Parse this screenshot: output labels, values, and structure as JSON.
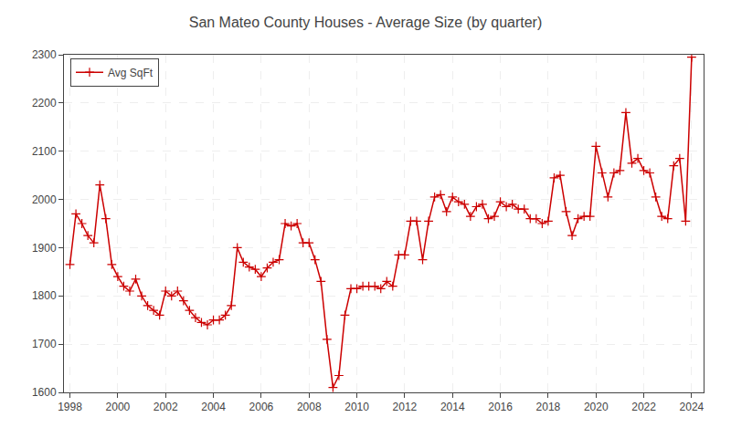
{
  "chart_data": {
    "type": "line",
    "title": "San Mateo County Houses - Average Size (by quarter)",
    "x": [
      1998.0,
      1998.25,
      1998.5,
      1998.75,
      1999.0,
      1999.25,
      1999.5,
      1999.75,
      2000.0,
      2000.25,
      2000.5,
      2000.75,
      2001.0,
      2001.25,
      2001.5,
      2001.75,
      2002.0,
      2002.25,
      2002.5,
      2002.75,
      2003.0,
      2003.25,
      2003.5,
      2003.75,
      2004.0,
      2004.25,
      2004.5,
      2004.75,
      2005.0,
      2005.25,
      2005.5,
      2005.75,
      2006.0,
      2006.25,
      2006.5,
      2006.75,
      2007.0,
      2007.25,
      2007.5,
      2007.75,
      2008.0,
      2008.25,
      2008.5,
      2008.75,
      2009.0,
      2009.25,
      2009.5,
      2009.75,
      2010.0,
      2010.25,
      2010.5,
      2010.75,
      2011.0,
      2011.25,
      2011.5,
      2011.75,
      2012.0,
      2012.25,
      2012.5,
      2012.75,
      2013.0,
      2013.25,
      2013.5,
      2013.75,
      2014.0,
      2014.25,
      2014.5,
      2014.75,
      2015.0,
      2015.25,
      2015.5,
      2015.75,
      2016.0,
      2016.25,
      2016.5,
      2016.75,
      2017.0,
      2017.25,
      2017.5,
      2017.75,
      2018.0,
      2018.25,
      2018.5,
      2018.75,
      2019.0,
      2019.25,
      2019.5,
      2019.75,
      2020.0,
      2020.25,
      2020.5,
      2020.75,
      2021.0,
      2021.25,
      2021.5,
      2021.75,
      2022.0,
      2022.25,
      2022.5,
      2022.75,
      2023.0,
      2023.25,
      2023.5,
      2023.75,
      2024.0
    ],
    "series": [
      {
        "name": "Avg SqFt",
        "color": "#cc0000",
        "marker": "plus",
        "line_style": "solid",
        "values": [
          1865,
          1970,
          1950,
          1925,
          1910,
          2030,
          1960,
          1865,
          1840,
          1820,
          1810,
          1835,
          1800,
          1780,
          1770,
          1760,
          1810,
          1800,
          1810,
          1790,
          1770,
          1755,
          1745,
          1740,
          1750,
          1750,
          1760,
          1780,
          1900,
          1870,
          1860,
          1855,
          1840,
          1858,
          1870,
          1875,
          1950,
          1945,
          1950,
          1910,
          1910,
          1875,
          1830,
          1710,
          1610,
          1635,
          1760,
          1815,
          1815,
          1820,
          1820,
          1820,
          1815,
          1830,
          1820,
          1885,
          1885,
          1955,
          1955,
          1875,
          1955,
          2005,
          2010,
          1975,
          2005,
          1995,
          1990,
          1965,
          1985,
          1990,
          1960,
          1965,
          1995,
          1985,
          1990,
          1980,
          1980,
          1960,
          1960,
          1950,
          1955,
          2045,
          2050,
          1975,
          1925,
          1960,
          1965,
          1965,
          2110,
          2055,
          2005,
          2055,
          2060,
          2180,
          2075,
          2085,
          2060,
          2055,
          2005,
          1965,
          1960,
          2070,
          2085,
          1955,
          2295
        ]
      }
    ],
    "xlim": [
      1997.75,
      2024.5
    ],
    "xticks": [
      1998,
      2000,
      2002,
      2004,
      2006,
      2008,
      2010,
      2012,
      2014,
      2016,
      2018,
      2020,
      2022,
      2024
    ],
    "ylim": [
      1600,
      2300
    ],
    "yticks": [
      1600,
      1700,
      1800,
      1900,
      2000,
      2100,
      2200,
      2300
    ],
    "grid": true,
    "legend": "upper left"
  }
}
